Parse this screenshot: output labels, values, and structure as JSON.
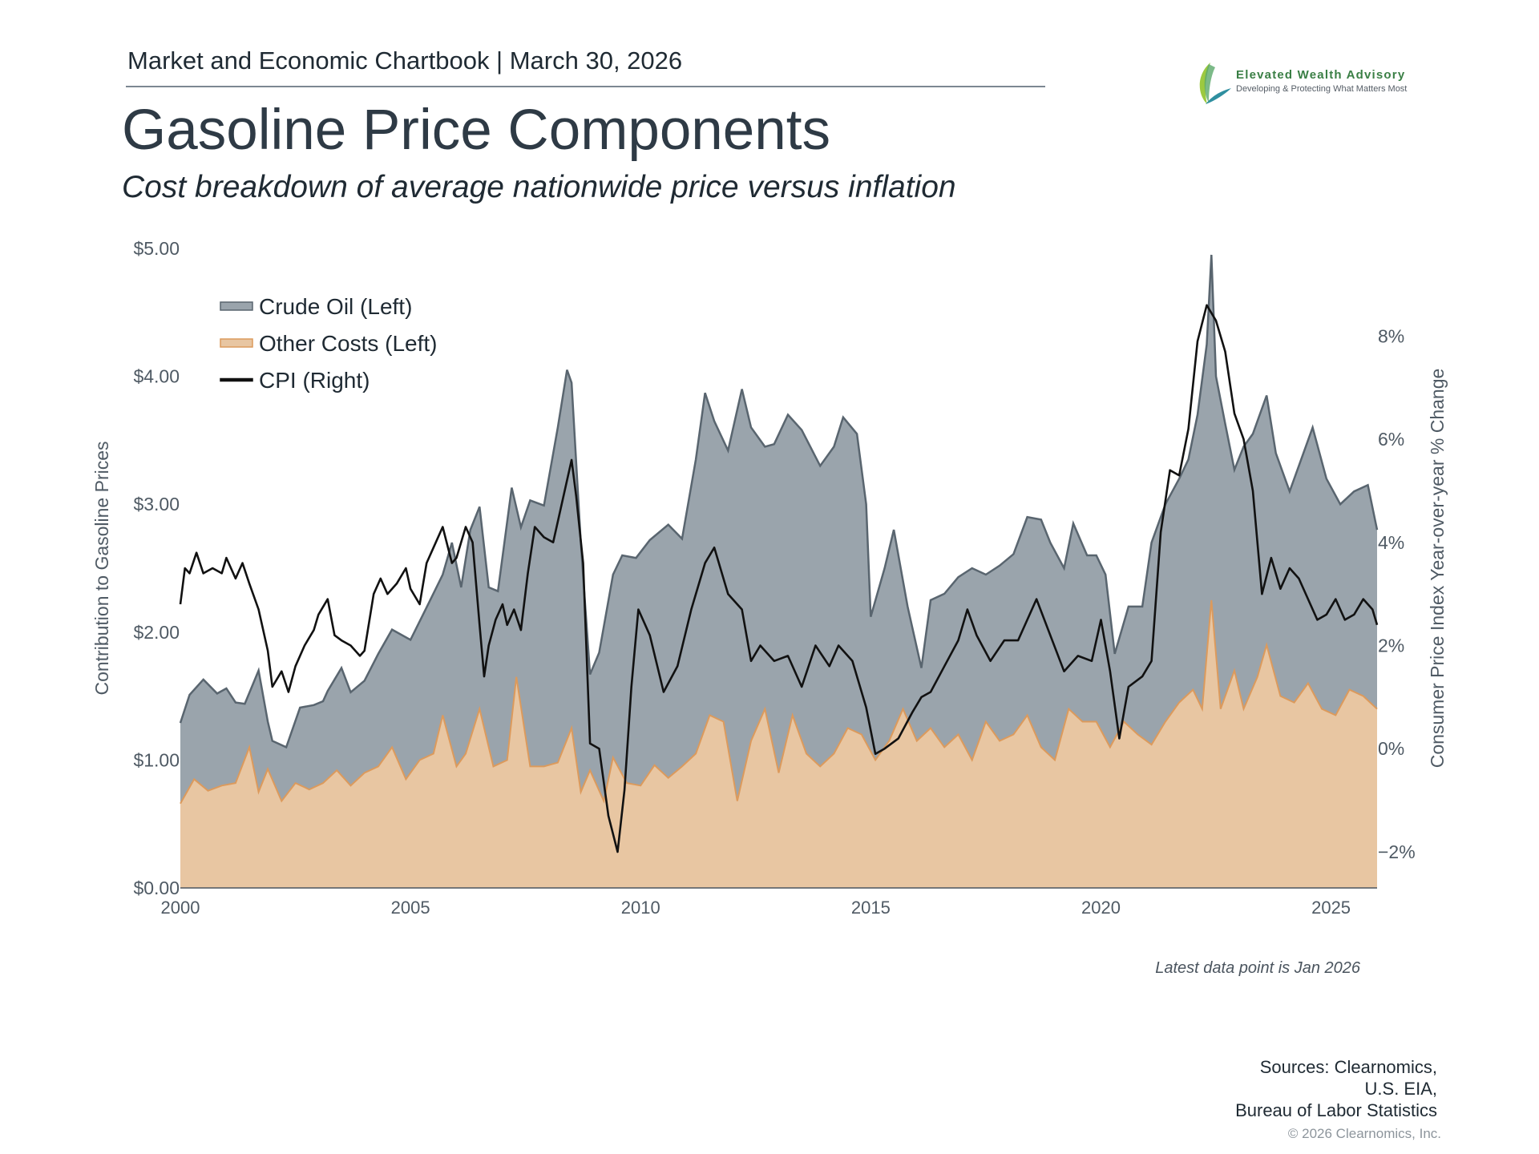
{
  "header": {
    "chartbook": "Market and Economic Chartbook | March 30, 2026"
  },
  "logo": {
    "name": "Elevated Wealth Advisory",
    "tagline": "Developing & Protecting What Matters Most",
    "colors": {
      "green": "#3a7f45",
      "teal": "#2f8fa0",
      "lime": "#9cc940"
    }
  },
  "page": {
    "title": "Gasoline Price Components",
    "subtitle": "Cost breakdown of average nationwide price versus inflation",
    "note": "Latest data point is Jan 2026",
    "sources": [
      "Sources: Clearnomics,",
      "U.S. EIA,",
      "Bureau of Labor Statistics"
    ],
    "copyright": "© 2026 Clearnomics, Inc."
  },
  "chart_data": {
    "type": "area",
    "colors": {
      "crude": "#9aa4ac",
      "crude_line": "#59656f",
      "other": "#e8c6a2",
      "other_line": "#dc9a5c",
      "cpi": "#111111",
      "axis_text": "#4f5a64"
    },
    "xlabel": "",
    "ylabel": "Contribution to Gasoline Prices",
    "y2label": "Consumer Price Index Year-over-year % Change",
    "xlim": [
      2000.0,
      2026.0
    ],
    "ylim": [
      0,
      5.0
    ],
    "y2lim": [
      -2.7,
      9.7
    ],
    "x_ticks": [
      "2000",
      "2005",
      "2010",
      "2015",
      "2020",
      "2025"
    ],
    "y_ticks": [
      "$0.00",
      "$1.00",
      "$2.00",
      "$3.00",
      "$4.00",
      "$5.00"
    ],
    "y2_ticks": [
      "−2%",
      "0%",
      "2%",
      "4%",
      "6%",
      "8%"
    ],
    "legend_position": "top-left",
    "legend": [
      "Crude Oil (Left)",
      "Other Costs (Left)",
      "CPI (Right)"
    ],
    "total_price": {
      "x": [
        2000.0,
        2000.2,
        2000.5,
        2000.8,
        2001.0,
        2001.2,
        2001.4,
        2001.7,
        2001.9,
        2002.0,
        2002.3,
        2002.6,
        2002.9,
        2003.1,
        2003.2,
        2003.5,
        2003.7,
        2004.0,
        2004.3,
        2004.6,
        2005.0,
        2005.4,
        2005.7,
        2005.9,
        2006.1,
        2006.3,
        2006.5,
        2006.7,
        2006.9,
        2007.2,
        2007.4,
        2007.6,
        2007.9,
        2008.2,
        2008.4,
        2008.5,
        2008.7,
        2008.9,
        2009.1,
        2009.4,
        2009.6,
        2009.9,
        2010.2,
        2010.6,
        2010.9,
        2011.2,
        2011.4,
        2011.6,
        2011.9,
        2012.2,
        2012.4,
        2012.7,
        2012.9,
        2013.2,
        2013.5,
        2013.9,
        2014.2,
        2014.4,
        2014.7,
        2014.9,
        2015.0,
        2015.3,
        2015.5,
        2015.8,
        2016.1,
        2016.3,
        2016.6,
        2016.9,
        2017.2,
        2017.5,
        2017.8,
        2018.1,
        2018.4,
        2018.7,
        2018.9,
        2019.2,
        2019.4,
        2019.7,
        2019.9,
        2020.1,
        2020.3,
        2020.6,
        2020.9,
        2021.1,
        2021.4,
        2021.7,
        2021.9,
        2022.1,
        2022.3,
        2022.4,
        2022.5,
        2022.7,
        2022.9,
        2023.1,
        2023.3,
        2023.6,
        2023.8,
        2024.1,
        2024.3,
        2024.6,
        2024.9,
        2025.2,
        2025.5,
        2025.8,
        2026.0
      ],
      "y": [
        1.29,
        1.51,
        1.63,
        1.52,
        1.56,
        1.45,
        1.44,
        1.7,
        1.3,
        1.15,
        1.1,
        1.41,
        1.43,
        1.46,
        1.54,
        1.72,
        1.53,
        1.62,
        1.83,
        2.02,
        1.94,
        2.23,
        2.45,
        2.7,
        2.35,
        2.8,
        2.98,
        2.35,
        2.32,
        3.13,
        2.82,
        3.03,
        2.99,
        3.6,
        4.05,
        3.95,
        2.7,
        1.67,
        1.84,
        2.45,
        2.6,
        2.58,
        2.72,
        2.84,
        2.73,
        3.35,
        3.87,
        3.65,
        3.42,
        3.9,
        3.6,
        3.45,
        3.47,
        3.7,
        3.58,
        3.3,
        3.45,
        3.68,
        3.55,
        3.0,
        2.12,
        2.5,
        2.8,
        2.2,
        1.72,
        2.25,
        2.3,
        2.43,
        2.5,
        2.45,
        2.52,
        2.61,
        2.9,
        2.88,
        2.7,
        2.5,
        2.85,
        2.6,
        2.6,
        2.45,
        1.83,
        2.2,
        2.2,
        2.7,
        3.0,
        3.2,
        3.35,
        3.7,
        4.25,
        4.95,
        4.0,
        3.63,
        3.27,
        3.45,
        3.55,
        3.85,
        3.4,
        3.1,
        3.3,
        3.6,
        3.2,
        3.0,
        3.1,
        3.15,
        2.8
      ]
    },
    "other_costs": {
      "x": [
        2000.0,
        2000.3,
        2000.6,
        2000.9,
        2001.2,
        2001.5,
        2001.7,
        2001.9,
        2002.2,
        2002.5,
        2002.8,
        2003.1,
        2003.4,
        2003.7,
        2004.0,
        2004.3,
        2004.6,
        2004.9,
        2005.2,
        2005.5,
        2005.7,
        2006.0,
        2006.2,
        2006.5,
        2006.8,
        2007.1,
        2007.3,
        2007.6,
        2007.9,
        2008.2,
        2008.5,
        2008.7,
        2008.9,
        2009.2,
        2009.4,
        2009.7,
        2010.0,
        2010.3,
        2010.6,
        2010.9,
        2011.2,
        2011.5,
        2011.8,
        2012.1,
        2012.4,
        2012.7,
        2013.0,
        2013.3,
        2013.6,
        2013.9,
        2014.2,
        2014.5,
        2014.8,
        2015.1,
        2015.4,
        2015.7,
        2016.0,
        2016.3,
        2016.6,
        2016.9,
        2017.2,
        2017.5,
        2017.8,
        2018.1,
        2018.4,
        2018.7,
        2019.0,
        2019.3,
        2019.6,
        2019.9,
        2020.2,
        2020.5,
        2020.8,
        2021.1,
        2021.4,
        2021.7,
        2022.0,
        2022.2,
        2022.4,
        2022.6,
        2022.9,
        2023.1,
        2023.4,
        2023.6,
        2023.9,
        2024.2,
        2024.5,
        2024.8,
        2025.1,
        2025.4,
        2025.7,
        2026.0
      ],
      "y": [
        0.66,
        0.85,
        0.76,
        0.8,
        0.82,
        1.1,
        0.75,
        0.93,
        0.68,
        0.82,
        0.77,
        0.82,
        0.92,
        0.8,
        0.9,
        0.95,
        1.1,
        0.85,
        1.0,
        1.05,
        1.35,
        0.95,
        1.05,
        1.4,
        0.95,
        1.0,
        1.65,
        0.95,
        0.95,
        0.98,
        1.25,
        0.75,
        0.92,
        0.68,
        1.02,
        0.82,
        0.8,
        0.96,
        0.86,
        0.95,
        1.05,
        1.35,
        1.3,
        0.68,
        1.15,
        1.4,
        0.9,
        1.35,
        1.05,
        0.95,
        1.05,
        1.25,
        1.2,
        1.0,
        1.15,
        1.4,
        1.15,
        1.25,
        1.1,
        1.2,
        1.0,
        1.3,
        1.15,
        1.2,
        1.35,
        1.1,
        1.0,
        1.4,
        1.3,
        1.3,
        1.1,
        1.3,
        1.2,
        1.12,
        1.3,
        1.45,
        1.55,
        1.4,
        2.25,
        1.4,
        1.7,
        1.4,
        1.65,
        1.9,
        1.5,
        1.45,
        1.6,
        1.4,
        1.35,
        1.55,
        1.5,
        1.4
      ]
    },
    "cpi": {
      "x": [
        2000.0,
        2000.1,
        2000.2,
        2000.35,
        2000.5,
        2000.7,
        2000.9,
        2001.0,
        2001.2,
        2001.35,
        2001.5,
        2001.7,
        2001.9,
        2002.0,
        2002.2,
        2002.35,
        2002.5,
        2002.7,
        2002.9,
        2003.0,
        2003.2,
        2003.35,
        2003.5,
        2003.7,
        2003.9,
        2004.0,
        2004.2,
        2004.35,
        2004.5,
        2004.7,
        2004.9,
        2005.0,
        2005.2,
        2005.35,
        2005.5,
        2005.7,
        2005.9,
        2006.0,
        2006.2,
        2006.35,
        2006.5,
        2006.6,
        2006.7,
        2006.85,
        2007.0,
        2007.1,
        2007.25,
        2007.4,
        2007.55,
        2007.7,
        2007.9,
        2008.1,
        2008.3,
        2008.5,
        2008.6,
        2008.75,
        2008.9,
        2009.1,
        2009.3,
        2009.5,
        2009.65,
        2009.8,
        2009.95,
        2010.2,
        2010.5,
        2010.8,
        2011.1,
        2011.4,
        2011.6,
        2011.9,
        2012.2,
        2012.4,
        2012.6,
        2012.9,
        2013.2,
        2013.5,
        2013.8,
        2014.1,
        2014.3,
        2014.6,
        2014.9,
        2015.1,
        2015.3,
        2015.6,
        2015.9,
        2016.1,
        2016.3,
        2016.6,
        2016.9,
        2017.1,
        2017.3,
        2017.6,
        2017.9,
        2018.2,
        2018.4,
        2018.6,
        2018.9,
        2019.2,
        2019.5,
        2019.8,
        2020.0,
        2020.2,
        2020.4,
        2020.6,
        2020.9,
        2021.1,
        2021.3,
        2021.5,
        2021.7,
        2021.9,
        2022.1,
        2022.3,
        2022.5,
        2022.7,
        2022.9,
        2023.1,
        2023.3,
        2023.5,
        2023.7,
        2023.9,
        2024.1,
        2024.3,
        2024.5,
        2024.7,
        2024.9,
        2025.1,
        2025.3,
        2025.5,
        2025.7,
        2025.9,
        2026.0
      ],
      "y": [
        2.8,
        3.5,
        3.4,
        3.8,
        3.4,
        3.5,
        3.4,
        3.7,
        3.3,
        3.6,
        3.2,
        2.7,
        1.9,
        1.2,
        1.5,
        1.1,
        1.6,
        2.0,
        2.3,
        2.6,
        2.9,
        2.2,
        2.1,
        2.0,
        1.8,
        1.9,
        3.0,
        3.3,
        3.0,
        3.2,
        3.5,
        3.1,
        2.8,
        3.6,
        3.9,
        4.3,
        3.6,
        3.7,
        4.3,
        4.0,
        2.4,
        1.4,
        2.0,
        2.5,
        2.8,
        2.4,
        2.7,
        2.3,
        3.4,
        4.3,
        4.1,
        4.0,
        4.8,
        5.6,
        4.9,
        3.6,
        0.1,
        0.0,
        -1.3,
        -2.0,
        -0.8,
        1.2,
        2.7,
        2.2,
        1.1,
        1.6,
        2.7,
        3.6,
        3.9,
        3.0,
        2.7,
        1.7,
        2.0,
        1.7,
        1.8,
        1.2,
        2.0,
        1.6,
        2.0,
        1.7,
        0.8,
        -0.1,
        0.0,
        0.2,
        0.7,
        1.0,
        1.1,
        1.6,
        2.1,
        2.7,
        2.2,
        1.7,
        2.1,
        2.1,
        2.5,
        2.9,
        2.2,
        1.5,
        1.8,
        1.7,
        2.5,
        1.5,
        0.2,
        1.2,
        1.4,
        1.7,
        4.2,
        5.4,
        5.3,
        6.2,
        7.9,
        8.6,
        8.3,
        7.7,
        6.5,
        6.0,
        5.0,
        3.0,
        3.7,
        3.1,
        3.5,
        3.3,
        2.9,
        2.5,
        2.6,
        2.9,
        2.5,
        2.6,
        2.9,
        2.7,
        2.4
      ]
    }
  }
}
